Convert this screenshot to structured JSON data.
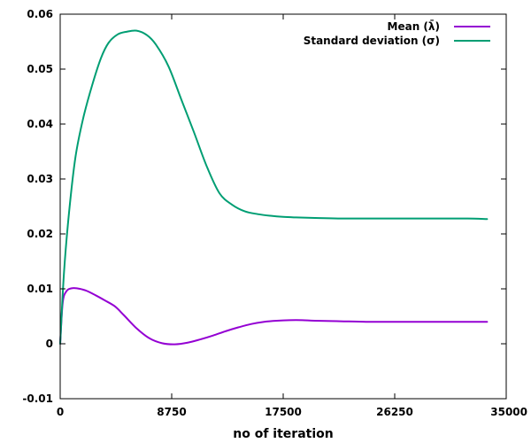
{
  "chart_data": {
    "type": "line",
    "title": "",
    "xlabel": "no of iteration",
    "ylabel": "",
    "xlim": [
      0,
      35000
    ],
    "ylim": [
      -0.01,
      0.06
    ],
    "xticks": [
      0,
      8750,
      17500,
      26250,
      35000
    ],
    "xtick_labels": [
      "0",
      "8750",
      "17500",
      "26250",
      "35000"
    ],
    "yticks": [
      -0.01,
      0,
      0.01,
      0.02,
      0.03,
      0.04,
      0.05,
      0.06
    ],
    "ytick_labels": [
      "-0.01",
      "0",
      "0.01",
      "0.02",
      "0.03",
      "0.04",
      "0.05",
      "0.06"
    ],
    "grid": false,
    "legend_position": "top-right",
    "series": [
      {
        "name": "Mean (λ̄)",
        "color": "#9400d3",
        "x": [
          0,
          200,
          500,
          900,
          1300,
          2000,
          2800,
          3500,
          4300,
          5000,
          6000,
          7000,
          8000,
          9000,
          10000,
          11000,
          12000,
          13000,
          14000,
          15000,
          16000,
          17000,
          18000,
          19000,
          20000,
          22000,
          24000,
          26000,
          28000,
          30000,
          32000,
          33500
        ],
        "y": [
          0,
          0.0075,
          0.0096,
          0.0101,
          0.0101,
          0.0097,
          0.0088,
          0.0079,
          0.0068,
          0.0052,
          0.0028,
          0.001,
          0.0001,
          -0.0001,
          0.0002,
          0.0008,
          0.0015,
          0.0023,
          0.003,
          0.0036,
          0.004,
          0.0042,
          0.0043,
          0.0043,
          0.0042,
          0.0041,
          0.004,
          0.004,
          0.004,
          0.004,
          0.004,
          0.004
        ]
      },
      {
        "name": "Standard deviation (σ)",
        "color": "#009e73",
        "x": [
          0,
          300,
          700,
          1200,
          1800,
          2500,
          3200,
          3800,
          4500,
          5200,
          6000,
          6800,
          7500,
          8500,
          9500,
          10500,
          11500,
          12500,
          13500,
          14500,
          15500,
          16500,
          17500,
          18500,
          20000,
          22000,
          24000,
          26000,
          28000,
          30000,
          32000,
          33500
        ],
        "y": [
          0,
          0.013,
          0.024,
          0.034,
          0.041,
          0.047,
          0.052,
          0.0548,
          0.0563,
          0.0568,
          0.057,
          0.0562,
          0.0545,
          0.0505,
          0.0445,
          0.0385,
          0.0323,
          0.0274,
          0.0253,
          0.0241,
          0.0236,
          0.0233,
          0.0231,
          0.023,
          0.0229,
          0.0228,
          0.0228,
          0.0228,
          0.0228,
          0.0228,
          0.0228,
          0.0227
        ]
      }
    ]
  }
}
